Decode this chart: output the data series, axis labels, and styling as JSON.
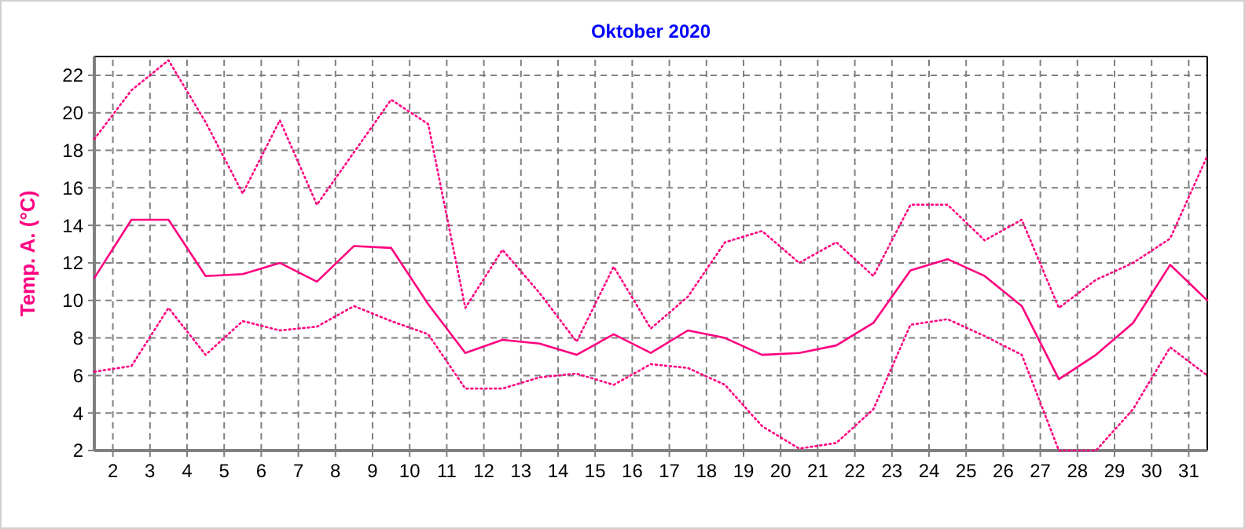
{
  "chart_data": {
    "type": "line",
    "title": "Oktober 2020",
    "ylabel": "Temp. A. (°C)",
    "x": [
      1.5,
      2.5,
      3.5,
      4.5,
      5.5,
      6.5,
      7.5,
      8.5,
      9.5,
      10.5,
      11.5,
      12.5,
      13.5,
      14.5,
      15.5,
      16.5,
      17.5,
      18.5,
      19.5,
      20.5,
      21.5,
      22.5,
      23.5,
      24.5,
      25.5,
      26.5,
      27.5,
      28.5,
      29.5,
      30.5,
      31.5
    ],
    "series": [
      {
        "color": "#ff0080",
        "line_style": "dotted",
        "values": [
          18.6,
          21.2,
          22.8,
          19.5,
          15.7,
          19.6,
          15.1,
          17.9,
          20.7,
          19.4,
          9.6,
          12.7,
          10.4,
          7.8,
          11.8,
          8.5,
          10.2,
          13.1,
          13.7,
          12.0,
          13.1,
          11.3,
          15.1,
          15.1,
          13.2,
          14.3,
          9.6,
          11.1,
          12.0,
          13.3,
          17.7
        ]
      },
      {
        "color": "#ff0080",
        "line_style": "solid",
        "values": [
          11.2,
          14.3,
          14.3,
          11.3,
          11.4,
          12.0,
          11.0,
          12.9,
          12.8,
          9.8,
          7.2,
          7.9,
          7.7,
          7.1,
          8.2,
          7.2,
          8.4,
          8.0,
          7.1,
          7.2,
          7.6,
          8.8,
          11.6,
          12.2,
          11.3,
          9.7,
          5.8,
          7.1,
          8.8,
          11.9,
          10.0
        ]
      },
      {
        "color": "#ff0080",
        "line_style": "dotted",
        "values": [
          6.2,
          6.5,
          9.6,
          7.1,
          8.9,
          8.4,
          8.6,
          9.7,
          8.9,
          8.2,
          5.3,
          5.3,
          5.9,
          6.1,
          5.5,
          6.6,
          6.4,
          5.5,
          3.3,
          2.1,
          2.4,
          4.2,
          8.7,
          9.0,
          8.1,
          7.1,
          2.0,
          2.0,
          4.2,
          7.5,
          6.0
        ]
      }
    ],
    "xlim": [
      1.5,
      31.5
    ],
    "xticks": [
      2,
      3,
      4,
      5,
      6,
      7,
      8,
      9,
      10,
      11,
      12,
      13,
      14,
      15,
      16,
      17,
      18,
      19,
      20,
      21,
      22,
      23,
      24,
      25,
      26,
      27,
      28,
      29,
      30,
      31
    ],
    "ylim": [
      2,
      23
    ],
    "yticks": [
      2,
      4,
      6,
      8,
      10,
      12,
      14,
      16,
      18,
      20,
      22
    ],
    "grid": true,
    "marker": "none"
  }
}
